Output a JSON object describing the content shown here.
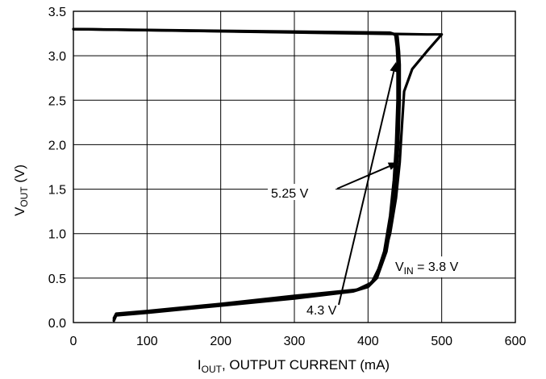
{
  "chart_data": {
    "type": "line",
    "title": "",
    "xlabel": {
      "main": "I",
      "sub": "OUT",
      "rest": ", OUTPUT CURRENT (mA)"
    },
    "ylabel": {
      "main": "V",
      "sub": "OUT",
      "rest": " (V)"
    },
    "xlim": [
      0,
      600
    ],
    "ylim": [
      0,
      3.5
    ],
    "x_ticks": [
      0,
      100,
      200,
      300,
      400,
      500,
      600
    ],
    "x_tick_labels": [
      "0",
      "100",
      "200",
      "300",
      "400",
      "500",
      "600"
    ],
    "y_ticks": [
      0,
      0.5,
      1.0,
      1.5,
      2.0,
      2.5,
      3.0,
      3.5
    ],
    "y_tick_labels": [
      "0.0",
      "0.5",
      "1.0",
      "1.5",
      "2.0",
      "2.5",
      "3.0",
      "3.5"
    ],
    "grid": true,
    "series": [
      {
        "label": "4.3 V",
        "points": [
          [
            0,
            3.3
          ],
          [
            430,
            3.26
          ],
          [
            437,
            3.24
          ],
          [
            439,
            3.1
          ],
          [
            440,
            2.95
          ],
          [
            440,
            2.5
          ],
          [
            438,
            2.0
          ],
          [
            435,
            1.6
          ],
          [
            430,
            1.2
          ],
          [
            422,
            0.8
          ],
          [
            410,
            0.5
          ],
          [
            398,
            0.4
          ],
          [
            380,
            0.36
          ],
          [
            300,
            0.28
          ],
          [
            200,
            0.2
          ],
          [
            100,
            0.12
          ],
          [
            58,
            0.09
          ],
          [
            55,
            0.03
          ]
        ]
      },
      {
        "label": "5.25 V",
        "points": [
          [
            0,
            3.3
          ],
          [
            433,
            3.25
          ],
          [
            440,
            3.22
          ],
          [
            442,
            3.05
          ],
          [
            443,
            2.9
          ],
          [
            443,
            2.5
          ],
          [
            441,
            2.0
          ],
          [
            438,
            1.6
          ],
          [
            433,
            1.2
          ],
          [
            425,
            0.8
          ],
          [
            412,
            0.5
          ],
          [
            400,
            0.4
          ],
          [
            380,
            0.35
          ],
          [
            300,
            0.27
          ],
          [
            200,
            0.19
          ],
          [
            100,
            0.11
          ],
          [
            58,
            0.08
          ],
          [
            55,
            0.02
          ]
        ]
      },
      {
        "label": "V_IN = 3.8 V",
        "points": [
          [
            0,
            3.3
          ],
          [
            480,
            3.24
          ],
          [
            500,
            3.24
          ],
          [
            480,
            3.05
          ],
          [
            460,
            2.85
          ],
          [
            449,
            2.6
          ],
          [
            446,
            2.2
          ],
          [
            443,
            1.8
          ],
          [
            438,
            1.4
          ],
          [
            430,
            1.0
          ],
          [
            420,
            0.7
          ],
          [
            405,
            0.45
          ],
          [
            385,
            0.37
          ],
          [
            300,
            0.3
          ],
          [
            200,
            0.21
          ],
          [
            100,
            0.13
          ],
          [
            58,
            0.1
          ],
          [
            55,
            0.05
          ]
        ]
      }
    ],
    "annotations": [
      {
        "id": "a43",
        "text": "4.3 V",
        "arrow_to": [
          438,
          2.93
        ]
      },
      {
        "id": "a525",
        "text": "5.25 V",
        "arrow_to": [
          441,
          1.8
        ]
      },
      {
        "id": "a38",
        "text_main": "V",
        "text_sub": "IN",
        "text_rest": " = 3.8 V"
      }
    ]
  }
}
